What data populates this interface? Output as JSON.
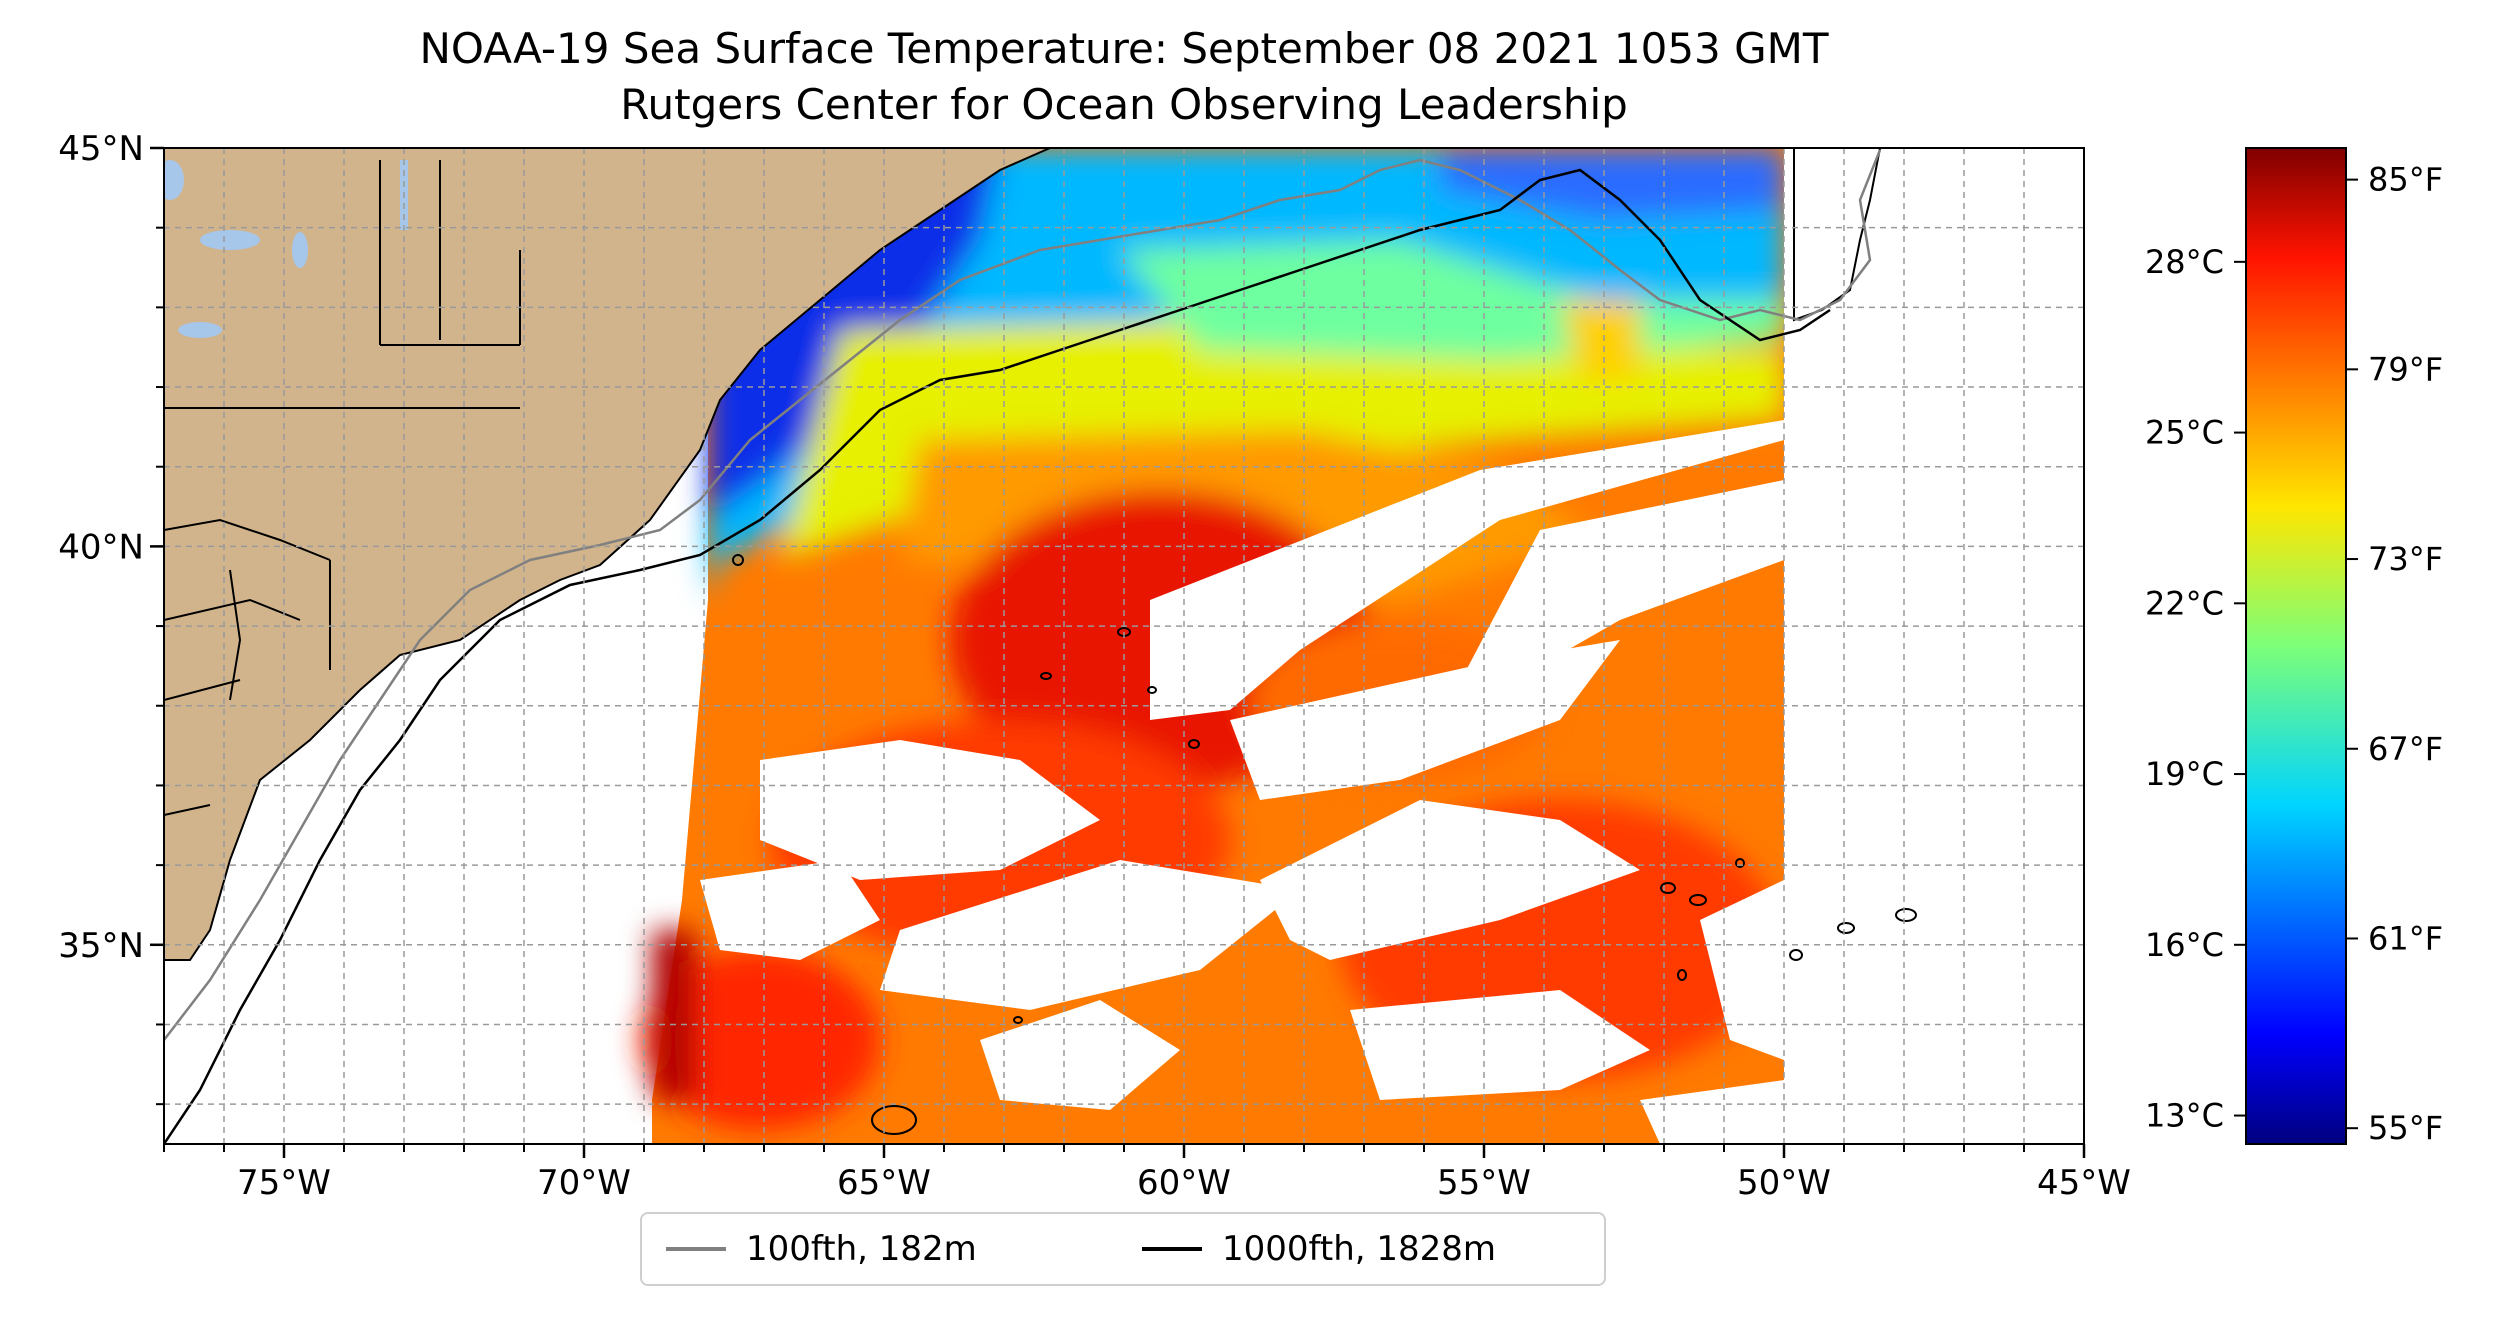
{
  "title": "NOAA-19 Sea Surface Temperature: September 08 2021 1053 GMT",
  "subtitle": "Rutgers Center for Ocean Observing Leadership",
  "map": {
    "lon_range": [
      -77,
      -45
    ],
    "lat_range": [
      32.5,
      45
    ],
    "lon_ticks": [
      {
        "value": -75,
        "label": "75°W"
      },
      {
        "value": -70,
        "label": "70°W"
      },
      {
        "value": -65,
        "label": "65°W"
      },
      {
        "value": -60,
        "label": "60°W"
      },
      {
        "value": -55,
        "label": "55°W"
      },
      {
        "value": -50,
        "label": "50°W"
      },
      {
        "value": -45,
        "label": "45°W"
      }
    ],
    "lat_ticks": [
      {
        "value": 45,
        "label": "45°N"
      },
      {
        "value": 40,
        "label": "40°N"
      },
      {
        "value": 35,
        "label": "35°N"
      }
    ],
    "gridlines": "dashed, every 1°",
    "land_color": "#d2b48c",
    "ocean_no_data_color": "#ffffff",
    "lake_color": "#a6c6ea"
  },
  "colorbar": {
    "colormap": "jet",
    "range_f": [
      54.5,
      86
    ],
    "celsius_ticks": [
      {
        "value_c": 13,
        "label": "13°C"
      },
      {
        "value_c": 16,
        "label": "16°C"
      },
      {
        "value_c": 19,
        "label": "19°C"
      },
      {
        "value_c": 22,
        "label": "22°C"
      },
      {
        "value_c": 25,
        "label": "25°C"
      },
      {
        "value_c": 28,
        "label": "28°C"
      }
    ],
    "fahrenheit_ticks": [
      {
        "value_f": 55,
        "label": "55°F"
      },
      {
        "value_f": 61,
        "label": "61°F"
      },
      {
        "value_f": 67,
        "label": "67°F"
      },
      {
        "value_f": 73,
        "label": "73°F"
      },
      {
        "value_f": 79,
        "label": "79°F"
      },
      {
        "value_f": 85,
        "label": "85°F"
      }
    ]
  },
  "legend": {
    "items": [
      {
        "label": "100fth, 182m",
        "color": "#808080"
      },
      {
        "label": "1000fth, 1828m",
        "color": "#000000"
      }
    ]
  }
}
